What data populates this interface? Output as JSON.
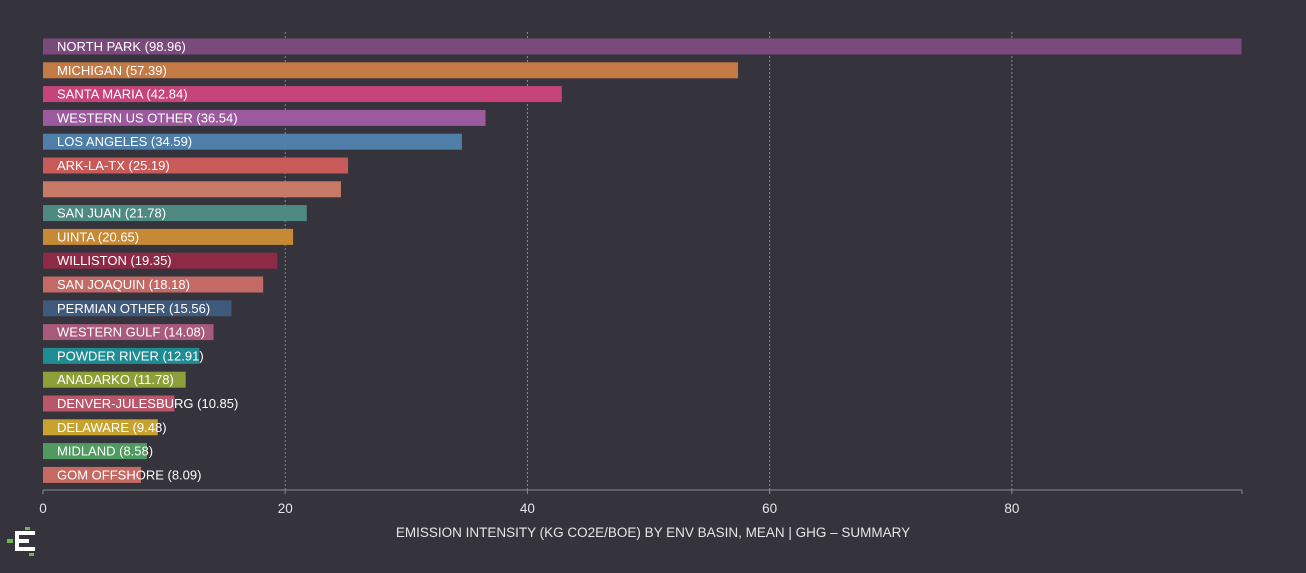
{
  "chart_data": {
    "type": "bar",
    "orientation": "horizontal",
    "title": "",
    "xlabel": "EMISSION INTENSITY (KG CO2E/BOE) BY ENV BASIN, MEAN | GHG – SUMMARY",
    "ylabel": "",
    "xlim": [
      0,
      99
    ],
    "xticks": [
      0,
      20,
      40,
      60,
      80
    ],
    "grid": true,
    "legend": "none",
    "categories": [
      "NORTH PARK (98.96)",
      "MICHIGAN (57.39)",
      "SANTA MARIA (42.84)",
      "WESTERN US OTHER (36.54)",
      "LOS ANGELES (34.59)",
      "ARK-LA-TX (25.19)",
      "",
      "SAN JUAN (21.78)",
      "UINTA (20.65)",
      "WILLISTON (19.35)",
      "SAN JOAQUIN (18.18)",
      "PERMIAN OTHER (15.56)",
      "WESTERN GULF (14.08)",
      "POWDER RIVER (12.91)",
      "ANADARKO (11.78)",
      "DENVER-JULESBURG (10.85)",
      "DELAWARE (9.48)",
      "MIDLAND (8.58)",
      "GOM OFFSHORE (8.09)"
    ],
    "values": [
      98.96,
      57.39,
      42.84,
      36.54,
      34.59,
      25.19,
      24.6,
      21.78,
      20.65,
      19.35,
      18.18,
      15.56,
      14.08,
      12.91,
      11.78,
      10.85,
      9.48,
      8.58,
      8.09
    ],
    "colors": [
      "#7b4a7d",
      "#c47a45",
      "#c6447a",
      "#9b5a9d",
      "#4f7fa8",
      "#c85a5a",
      "#c87a68",
      "#4f8a82",
      "#c68a36",
      "#8e2a46",
      "#c46a66",
      "#3f5a7a",
      "#a85a7a",
      "#1f8c94",
      "#8ca03a",
      "#b8566a",
      "#c8a22e",
      "#4f9a5e",
      "#c46a62"
    ]
  },
  "colors": {
    "background": "#35333b",
    "axis": "#8a8890",
    "gridline": "#8a8890",
    "label_text": "#ffffff",
    "tick_text": "#e6e6e6",
    "logo_green": "#6cba4a",
    "logo_white": "#ffffff"
  },
  "logo": {
    "icon": "stacked-blocks-logo-icon"
  }
}
